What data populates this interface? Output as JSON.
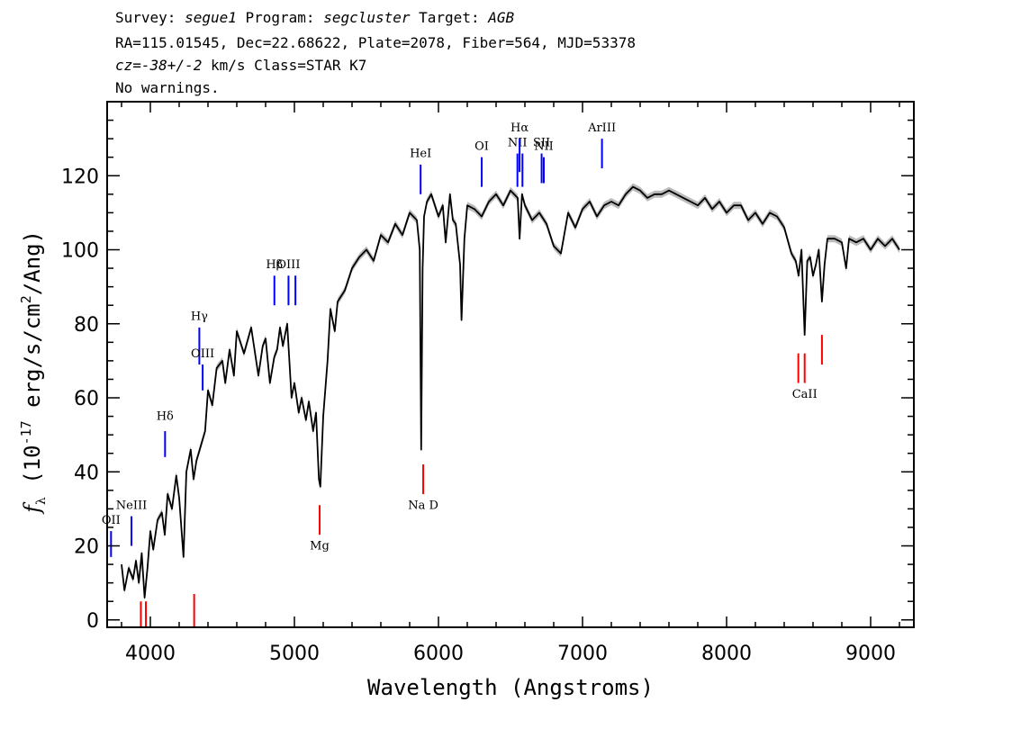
{
  "header": {
    "line1": {
      "survey_label": "Survey: ",
      "survey": "segue1",
      "program_label": " Program: ",
      "program": "segcluster",
      "target_label": " Target: ",
      "target": "AGB"
    },
    "line2": "RA=115.01545, Dec=22.68622, Plate=2078, Fiber=564, MJD=53378",
    "line3": {
      "cz_label": "cz",
      "cz_value": "=-38+/-2",
      "cz_unit": " km/s Class=STAR K7"
    },
    "line4": "No warnings."
  },
  "chart_data": {
    "type": "line",
    "xlabel": "Wavelength (Angstroms)",
    "ylabel": "f_λ (10^-17 erg/s/cm^2/Ang)",
    "xlim": [
      3700,
      9300
    ],
    "ylim": [
      -2,
      140
    ],
    "x_ticks": [
      4000,
      5000,
      6000,
      7000,
      8000,
      9000
    ],
    "y_ticks": [
      0,
      20,
      40,
      60,
      80,
      100,
      120
    ],
    "grid": false,
    "colors": {
      "spectrum": "#000000",
      "error": "#bbbbbb",
      "emission": "#0000ff",
      "absorption": "#ff0000"
    },
    "series": [
      {
        "x": [
          3800,
          3820,
          3850,
          3880,
          3900,
          3920,
          3940,
          3960,
          3980,
          4000,
          4020,
          4050,
          4080,
          4100,
          4120,
          4150,
          4180,
          4200,
          4230,
          4250,
          4280,
          4300,
          4320,
          4350,
          4380,
          4400,
          4430,
          4460,
          4500,
          4520,
          4550,
          4580,
          4600,
          4650,
          4700,
          4750,
          4780,
          4800,
          4830,
          4860,
          4880,
          4900,
          4920,
          4950,
          4980,
          5000,
          5030,
          5050,
          5080,
          5100,
          5130,
          5150,
          5170,
          5180,
          5200,
          5230,
          5250,
          5280,
          5300,
          5350,
          5400,
          5450,
          5500,
          5550,
          5600,
          5650,
          5700,
          5750,
          5800,
          5850,
          5870,
          5880,
          5890,
          5900,
          5920,
          5950,
          6000,
          6030,
          6050,
          6080,
          6100,
          6120,
          6150,
          6160,
          6180,
          6200,
          6250,
          6300,
          6350,
          6400,
          6450,
          6500,
          6550,
          6563,
          6580,
          6600,
          6650,
          6700,
          6750,
          6800,
          6850,
          6900,
          6950,
          7000,
          7050,
          7100,
          7150,
          7200,
          7250,
          7300,
          7350,
          7400,
          7450,
          7500,
          7550,
          7600,
          7650,
          7700,
          7750,
          7800,
          7850,
          7900,
          7950,
          8000,
          8050,
          8100,
          8150,
          8200,
          8250,
          8300,
          8350,
          8400,
          8450,
          8480,
          8500,
          8520,
          8542,
          8560,
          8580,
          8600,
          8620,
          8640,
          8662,
          8680,
          8700,
          8750,
          8800,
          8830,
          8850,
          8900,
          8950,
          9000,
          9050,
          9100,
          9150,
          9200
        ],
        "y": [
          15,
          8,
          14,
          11,
          16,
          10,
          18,
          6,
          14,
          24,
          19,
          27,
          29,
          23,
          34,
          30,
          39,
          33,
          17,
          40,
          46,
          38,
          43,
          47,
          51,
          62,
          58,
          68,
          70,
          64,
          73,
          66,
          78,
          72,
          79,
          66,
          74,
          76,
          64,
          71,
          73,
          79,
          74,
          80,
          60,
          64,
          56,
          60,
          54,
          59,
          51,
          56,
          38,
          36,
          55,
          70,
          84,
          78,
          86,
          89,
          95,
          98,
          100,
          97,
          104,
          102,
          107,
          104,
          110,
          108,
          100,
          46,
          95,
          109,
          113,
          115,
          109,
          112,
          102,
          115,
          108,
          107,
          96,
          81,
          103,
          112,
          111,
          109,
          113,
          115,
          112,
          116,
          114,
          103,
          115,
          112,
          108,
          110,
          107,
          101,
          99,
          110,
          106,
          111,
          113,
          109,
          112,
          113,
          112,
          115,
          117,
          116,
          114,
          115,
          115,
          116,
          115,
          114,
          113,
          112,
          114,
          111,
          113,
          110,
          112,
          112,
          108,
          110,
          107,
          110,
          109,
          106,
          99,
          97,
          93,
          100,
          77,
          97,
          98,
          93,
          96,
          100,
          86,
          96,
          103,
          103,
          102,
          95,
          103,
          102,
          103,
          100,
          103,
          101,
          103,
          100
        ]
      }
    ],
    "lines": {
      "emission": [
        {
          "name": "OII",
          "wave": 3727,
          "y0": 17,
          "y1": 24,
          "label_y": 26
        },
        {
          "name": "NeIII",
          "wave": 3869,
          "y0": 20,
          "y1": 28,
          "label_y": 30
        },
        {
          "name": "Hδ",
          "wave": 4102,
          "y0": 44,
          "y1": 51,
          "label_y": 54
        },
        {
          "name": "Hγ",
          "wave": 4340,
          "y0": 69,
          "y1": 79,
          "label_y": 81
        },
        {
          "name": "OIII",
          "wave": 4363,
          "y0": 62,
          "y1": 69,
          "label_y": 71
        },
        {
          "name": "Hβ",
          "wave": 4861,
          "y0": 85,
          "y1": 93,
          "label_y": 95
        },
        {
          "name": "OIII",
          "wave": 4959,
          "y0": 85,
          "y1": 93,
          "label_y": 95
        },
        {
          "name": "",
          "wave": 5007,
          "y0": 85,
          "y1": 93,
          "label_y": 95
        },
        {
          "name": "HeI",
          "wave": 5876,
          "y0": 115,
          "y1": 123,
          "label_y": 125
        },
        {
          "name": "OI",
          "wave": 6300,
          "y0": 117,
          "y1": 125,
          "label_y": 127
        },
        {
          "name": "NII",
          "wave": 6548,
          "y0": 117,
          "y1": 126,
          "label_y": 128
        },
        {
          "name": "Hα",
          "wave": 6563,
          "y0": 121,
          "y1": 130,
          "label_y": 132
        },
        {
          "name": "",
          "wave": 6583,
          "y0": 117,
          "y1": 126,
          "label_y": 128
        },
        {
          "name": "SII",
          "wave": 6716,
          "y0": 118,
          "y1": 126,
          "label_y": 128
        },
        {
          "name": "NII",
          "wave": 6731,
          "y0": 118,
          "y1": 125,
          "label_y": 127
        },
        {
          "name": "ArIII",
          "wave": 7135,
          "y0": 122,
          "y1": 130,
          "label_y": 132
        }
      ],
      "absorption": [
        {
          "name": "",
          "wave": 3934,
          "y0": -2,
          "y1": 5,
          "label_y": -5
        },
        {
          "name": "",
          "wave": 3969,
          "y0": -2,
          "y1": 5,
          "label_y": -5
        },
        {
          "name": "",
          "wave": 4304,
          "y0": -2,
          "y1": 7,
          "label_y": -5
        },
        {
          "name": "Mg",
          "wave": 5175,
          "y0": 23,
          "y1": 31,
          "label_y": 19
        },
        {
          "name": "Na D",
          "wave": 5894,
          "y0": 34,
          "y1": 42,
          "label_y": 30
        },
        {
          "name": "",
          "wave": 8498,
          "y0": 64,
          "y1": 72,
          "label_y": 60
        },
        {
          "name": "CaII",
          "wave": 8542,
          "y0": 64,
          "y1": 72,
          "label_y": 60
        },
        {
          "name": "",
          "wave": 8662,
          "y0": 69,
          "y1": 77,
          "label_y": 60
        }
      ]
    }
  }
}
